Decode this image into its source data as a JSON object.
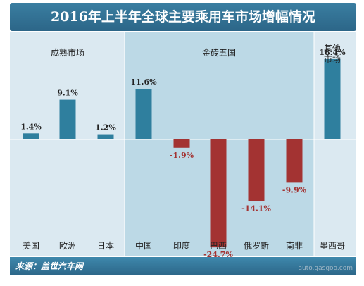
{
  "title": "2016年上半年全球主要乘用车市场增幅情况",
  "source": "来源：盖世汽车网",
  "watermark": "auto.gasgoo.com",
  "colors": {
    "panel_left": "#dbe9f1",
    "panel_mid": "#bcd9e6",
    "panel_right": "#dbe9f1",
    "positive": "#2f7f9e",
    "negative": "#a33332",
    "positive_label": "#222222",
    "negative_label": "#a33332"
  },
  "chart_data": {
    "type": "bar",
    "categories": [
      "美国",
      "欧洲",
      "日本",
      "中国",
      "印度",
      "巴西",
      "俄罗斯",
      "南非",
      "墨西哥"
    ],
    "values": [
      1.4,
      9.1,
      1.2,
      11.6,
      -1.9,
      -24.7,
      -14.1,
      -9.9,
      18.4
    ],
    "value_labels": [
      "1.4%",
      "9.1%",
      "1.2%",
      "11.6%",
      "-1.9%",
      "-24.7%",
      "-14.1%",
      "-9.9%",
      "18.4%"
    ],
    "groups": [
      {
        "label": "成熟市场",
        "start": 0,
        "end": 2
      },
      {
        "label": "金砖五国",
        "start": 3,
        "end": 7
      },
      {
        "label": "其他市场",
        "start": 8,
        "end": 8
      }
    ],
    "ylim": [
      -27,
      20
    ],
    "grid": false,
    "legend": "none"
  }
}
